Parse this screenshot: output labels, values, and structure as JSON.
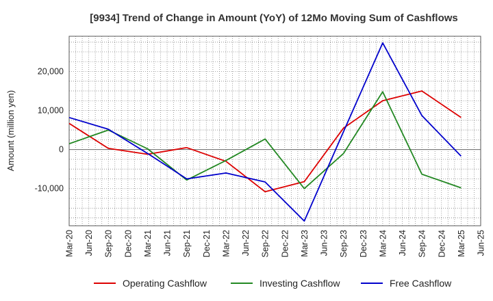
{
  "chart_data": {
    "type": "line",
    "title": "[9934]  Trend of Change in Amount (YoY) of 12Mo Moving Sum of Cashflows",
    "xlabel": "",
    "ylabel": "Amount (million yen)",
    "ylim": [
      -19500,
      29000
    ],
    "yticks": [
      -10000,
      0,
      10000,
      20000
    ],
    "ytick_labels": [
      "-10,000",
      "0",
      "10,000",
      "20,000"
    ],
    "grid": true,
    "legend_position": "bottom",
    "categories": [
      "Mar-20",
      "Jun-20",
      "Sep-20",
      "Dec-20",
      "Mar-21",
      "Jun-21",
      "Sep-21",
      "Dec-21",
      "Mar-22",
      "Jun-22",
      "Sep-22",
      "Dec-22",
      "Mar-23",
      "Jun-23",
      "Sep-23",
      "Dec-23",
      "Mar-24",
      "Jun-24",
      "Sep-24",
      "Dec-24",
      "Mar-25",
      "Jun-25"
    ],
    "series": [
      {
        "name": "Operating Cashflow",
        "color": "#dd0000",
        "values": [
          6700,
          null,
          300,
          null,
          -1200,
          null,
          500,
          null,
          -3000,
          null,
          -10800,
          null,
          -8200,
          null,
          5500,
          null,
          12500,
          null,
          15000,
          null,
          8200,
          null
        ]
      },
      {
        "name": "Investing Cashflow",
        "color": "#228822",
        "values": [
          1500,
          null,
          5000,
          null,
          200,
          null,
          -7800,
          null,
          -2800,
          null,
          2700,
          null,
          -10000,
          null,
          -1000,
          null,
          14800,
          null,
          -6300,
          null,
          -9800,
          null
        ]
      },
      {
        "name": "Free Cashflow",
        "color": "#0000cc",
        "values": [
          8200,
          null,
          5200,
          null,
          -1000,
          null,
          -7500,
          null,
          -6000,
          null,
          -8300,
          null,
          -18300,
          null,
          4600,
          null,
          27300,
          null,
          8700,
          null,
          -1700,
          null
        ]
      }
    ]
  }
}
